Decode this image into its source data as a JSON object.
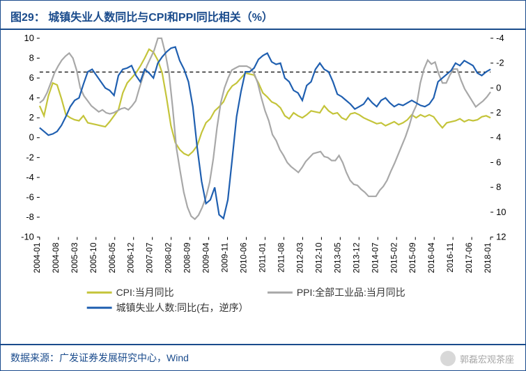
{
  "title": "图29：  城镇失业人数同比与CPI和PPI同比相关（%）",
  "source": "数据来源：广发证券发展研究中心，Wind",
  "watermark": "郭磊宏观茶座",
  "chart": {
    "type": "line",
    "background_color": "#ffffff",
    "border_color": "#1a4b8c",
    "left_axis": {
      "min": -10,
      "max": 10,
      "step": 2,
      "ticks": [
        -10,
        -8,
        -6,
        -4,
        -2,
        0,
        2,
        4,
        6,
        8,
        10
      ]
    },
    "right_axis": {
      "min": 12,
      "max": -4,
      "step": -2,
      "ticks": [
        -4,
        -2,
        0,
        2,
        4,
        6,
        8,
        10,
        12
      ]
    },
    "tick_len": 4,
    "dashed_ref": {
      "left_value": 6.6
    },
    "x_categories": [
      "2004-01",
      "2004-08",
      "2005-03",
      "2005-10",
      "2006-05",
      "2006-12",
      "2007-07",
      "2008-02",
      "2008-09",
      "2009-04",
      "2009-11",
      "2010-06",
      "2011-01",
      "2011-08",
      "2012-03",
      "2012-10",
      "2013-05",
      "2013-12",
      "2014-07",
      "2015-02",
      "2015-09",
      "2016-04",
      "2016-11",
      "2017-06",
      "2018-01"
    ],
    "x_total_points": 25,
    "label_fontsize": 12,
    "series": [
      {
        "name": "CPI:当月同比",
        "axis": "left",
        "color": "#c4c43a",
        "values": [
          3.2,
          2.2,
          4.2,
          5.5,
          5.3,
          3.9,
          2.3,
          2.0,
          1.8,
          1.7,
          2.2,
          1.5,
          1.4,
          1.3,
          1.2,
          1.1,
          1.6,
          2.2,
          2.8,
          4.5,
          5.5,
          6.0,
          6.5,
          7.2,
          8.0,
          8.9,
          8.6,
          7.8,
          6.5,
          4.0,
          1.2,
          -0.5,
          -1.2,
          -1.6,
          -1.8,
          -1.4,
          -0.8,
          0.5,
          1.5,
          1.9,
          2.7,
          3.1,
          3.6,
          4.6,
          5.2,
          5.5,
          6.0,
          6.5,
          6.4,
          6.3,
          5.5,
          4.5,
          4.1,
          3.6,
          3.4,
          3.0,
          2.2,
          1.9,
          2.5,
          2.2,
          2.0,
          2.3,
          2.7,
          2.6,
          2.5,
          3.2,
          2.7,
          2.4,
          2.5,
          2.0,
          1.8,
          2.4,
          2.5,
          2.3,
          2.0,
          1.8,
          1.6,
          1.4,
          1.5,
          1.2,
          1.4,
          1.6,
          1.3,
          1.5,
          1.8,
          2.3,
          2.0,
          2.3,
          2.1,
          2.3,
          2.1,
          1.5,
          1.0,
          1.5,
          1.6,
          1.7,
          1.9,
          1.6,
          1.8,
          1.7,
          1.8,
          2.1,
          2.2,
          2.0
        ]
      },
      {
        "name": "PPI:全部工业品:当月同比",
        "axis": "left",
        "color": "#a8a8a8",
        "values": [
          3.5,
          3.8,
          4.5,
          5.5,
          6.5,
          7.2,
          7.8,
          8.2,
          8.5,
          8.0,
          6.8,
          5.0,
          4.2,
          3.7,
          3.2,
          2.9,
          2.6,
          2.8,
          2.5,
          2.4,
          2.5,
          2.7,
          2.9,
          3.0,
          2.8,
          3.2,
          3.7,
          5.0,
          6.2,
          7.2,
          8.0,
          8.8,
          10.0,
          10.0,
          8.5,
          6.5,
          3.0,
          -1.0,
          -3.3,
          -5.5,
          -7.0,
          -7.9,
          -8.2,
          -7.8,
          -7.0,
          -6.0,
          -4.5,
          -2.1,
          1.0,
          3.5,
          5.0,
          6.0,
          6.8,
          7.0,
          7.2,
          7.2,
          7.2,
          7.0,
          6.5,
          5.5,
          4.0,
          2.7,
          1.7,
          0.3,
          -0.3,
          -1.2,
          -1.8,
          -2.5,
          -2.9,
          -3.2,
          -3.5,
          -3.0,
          -2.4,
          -2.0,
          -1.6,
          -1.5,
          -1.4,
          -1.9,
          -2.0,
          -2.3,
          -2.3,
          -1.8,
          -2.5,
          -3.5,
          -4.3,
          -4.7,
          -4.8,
          -5.2,
          -5.5,
          -5.9,
          -5.9,
          -5.9,
          -5.3,
          -4.9,
          -4.3,
          -3.4,
          -2.6,
          -1.7,
          -0.8,
          0.1,
          1.2,
          2.5,
          3.3,
          5.5,
          6.9,
          7.8,
          7.4,
          7.6,
          6.4,
          5.5,
          5.5,
          6.3,
          6.9,
          6.9,
          5.8,
          4.9,
          4.3,
          3.7,
          3.1,
          3.4,
          3.7,
          4.1,
          4.6
        ]
      },
      {
        "name": "城镇失业人数:同比(右，逆序）",
        "axis": "right",
        "color": "#1f5fb0",
        "values": [
          3.2,
          3.5,
          3.8,
          3.7,
          3.5,
          3.0,
          2.3,
          1.5,
          1.0,
          0.8,
          -0.3,
          -1.3,
          -1.5,
          -1.0,
          -0.5,
          0.0,
          0.2,
          0.6,
          -1.0,
          -1.5,
          -1.6,
          -1.8,
          -1.0,
          -0.5,
          -1.5,
          -1.2,
          -0.8,
          -2.0,
          -2.5,
          -2.9,
          -3.2,
          -3.3,
          -2.2,
          -1.5,
          -0.5,
          1.5,
          4.8,
          7.5,
          9.3,
          9.0,
          8.0,
          10.2,
          10.5,
          9.0,
          5.7,
          2.3,
          0.3,
          -1.3,
          -1.3,
          -1.6,
          -2.3,
          -2.6,
          -2.8,
          -2.1,
          -1.9,
          -2.0,
          -0.8,
          -0.5,
          0.2,
          0.4,
          1.0,
          -0.2,
          -0.5,
          -1.5,
          -2.0,
          -1.5,
          -1.3,
          -0.5,
          0.5,
          0.7,
          1.0,
          1.3,
          1.7,
          1.5,
          1.3,
          0.8,
          1.2,
          1.5,
          1.0,
          0.8,
          1.2,
          1.5,
          1.3,
          1.4,
          1.2,
          1.0,
          1.2,
          1.4,
          1.5,
          1.3,
          0.8,
          -0.5,
          -0.8,
          -1.1,
          -1.4,
          -2.0,
          -1.8,
          -2.2,
          -2.0,
          -1.8,
          -1.2,
          -1.0,
          -1.3,
          -1.5
        ]
      }
    ],
    "legend": {
      "position": "bottom",
      "items": [
        {
          "label": "CPI:当月同比",
          "color": "#c4c43a"
        },
        {
          "label": "PPI:全部工业品:当月同比",
          "color": "#a8a8a8"
        },
        {
          "label": "城镇失业人数:同比(右，逆序）",
          "color": "#1f5fb0"
        }
      ]
    }
  }
}
